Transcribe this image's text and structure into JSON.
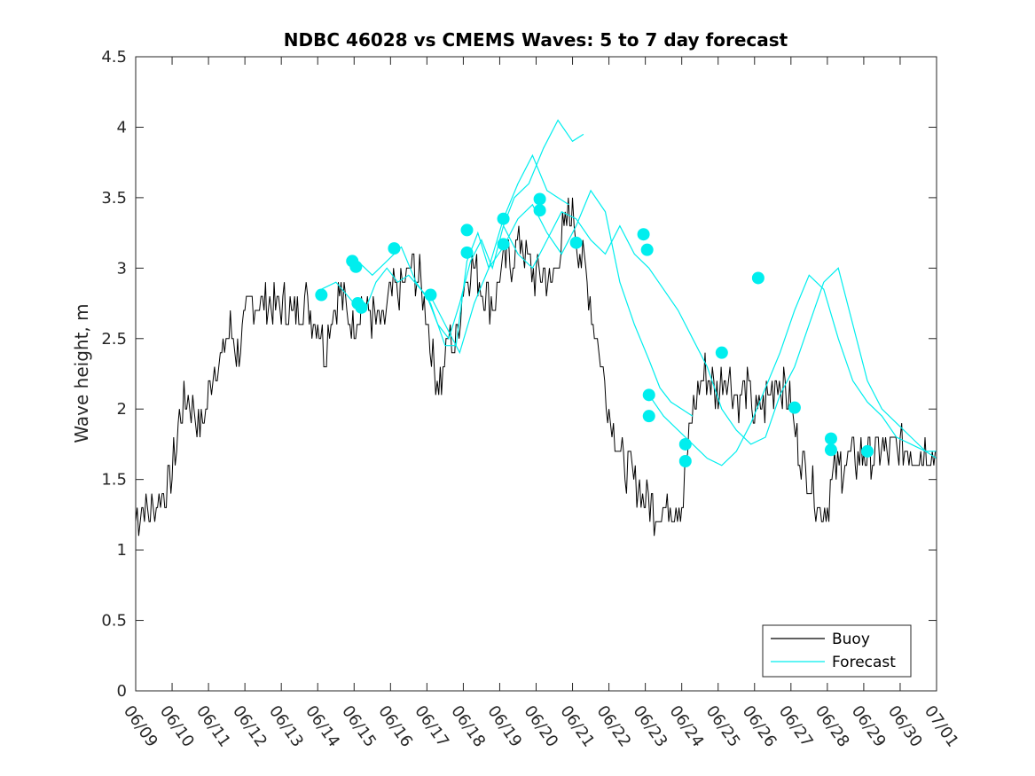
{
  "chart_data": {
    "type": "line",
    "title": "NDBC 46028 vs CMEMS Waves: 5 to 7 day forecast",
    "xlabel": "",
    "ylabel": "Wave height, m",
    "xlim": [
      "06/09",
      "07/01"
    ],
    "ylim": [
      0,
      4.5
    ],
    "x_ticks": [
      "06/09",
      "06/10",
      "06/11",
      "06/12",
      "06/13",
      "06/14",
      "06/15",
      "06/16",
      "06/17",
      "06/18",
      "06/19",
      "06/20",
      "06/21",
      "06/22",
      "06/23",
      "06/24",
      "06/25",
      "06/26",
      "06/27",
      "06/28",
      "06/29",
      "06/30",
      "07/01"
    ],
    "y_ticks": [
      0,
      0.5,
      1,
      1.5,
      2,
      2.5,
      3,
      3.5,
      4,
      4.5
    ],
    "y_tick_labels": [
      "0",
      "0.5",
      "1",
      "1.5",
      "2",
      "2.5",
      "3",
      "3.5",
      "4",
      "4.5"
    ],
    "grid": false,
    "legend_position": "bottom-right",
    "series": [
      {
        "name": "Buoy",
        "color": "#000000",
        "x_unit": "days since 06/09",
        "x": [
          0,
          0.2,
          0.4,
          0.6,
          0.8,
          1,
          1.2,
          1.4,
          1.6,
          1.8,
          2,
          2.2,
          2.4,
          2.6,
          2.8,
          3,
          3.2,
          3.4,
          3.6,
          3.8,
          4,
          4.2,
          4.4,
          4.6,
          4.8,
          5,
          5.2,
          5.4,
          5.6,
          5.8,
          6,
          6.2,
          6.4,
          6.6,
          6.8,
          7,
          7.2,
          7.4,
          7.6,
          7.8,
          8,
          8.2,
          8.4,
          8.6,
          8.8,
          9,
          9.2,
          9.4,
          9.6,
          9.8,
          10,
          10.2,
          10.4,
          10.6,
          10.8,
          11,
          11.2,
          11.4,
          11.6,
          11.8,
          12,
          12.2,
          12.4,
          12.6,
          12.8,
          13,
          13.2,
          13.4,
          13.6,
          13.8,
          14,
          14.2,
          14.4,
          14.6,
          14.8,
          15,
          15.2,
          15.4,
          15.6,
          15.8,
          16,
          16.2,
          16.4,
          16.6,
          16.8,
          17,
          17.2,
          17.4,
          17.6,
          17.8,
          18,
          18.2,
          18.4,
          18.6,
          18.8,
          19,
          19.2,
          19.4,
          19.6,
          19.8,
          20,
          20.2,
          20.4,
          20.6,
          20.8,
          21,
          21.2,
          21.4,
          21.6,
          21.8,
          22
        ],
        "values": [
          1.25,
          1.3,
          1.25,
          1.35,
          1.4,
          1.55,
          1.9,
          2.1,
          2.0,
          1.85,
          2.1,
          2.35,
          2.4,
          2.6,
          2.4,
          2.6,
          2.8,
          2.75,
          2.8,
          2.7,
          2.75,
          2.7,
          2.65,
          2.8,
          2.7,
          2.6,
          2.4,
          2.7,
          2.85,
          2.7,
          2.6,
          2.75,
          2.7,
          2.6,
          2.6,
          2.8,
          2.85,
          2.9,
          3.0,
          2.9,
          2.65,
          2.3,
          2.2,
          2.5,
          2.45,
          2.9,
          3.0,
          2.95,
          2.8,
          2.75,
          2.95,
          3.05,
          3.1,
          3.2,
          3.05,
          2.9,
          2.95,
          2.85,
          3.1,
          3.3,
          3.4,
          3.1,
          2.9,
          2.6,
          2.3,
          2.0,
          1.8,
          1.6,
          1.55,
          1.45,
          1.35,
          1.3,
          1.3,
          1.3,
          1.35,
          1.3,
          1.8,
          2.1,
          2.25,
          2.2,
          2.1,
          2.3,
          2.15,
          2.05,
          2.2,
          1.95,
          2.0,
          2.1,
          2.2,
          2.15,
          2.05,
          1.7,
          1.6,
          1.45,
          1.3,
          1.35,
          1.55,
          1.6,
          1.65,
          1.65,
          1.7,
          1.65,
          1.7,
          1.7,
          1.7,
          1.7,
          1.7,
          1.7,
          1.7,
          1.7,
          1.7
        ]
      },
      {
        "name": "Forecast",
        "color": "#00eeee",
        "segments": [
          {
            "x": [
              5.1,
              5.5,
              6,
              6.3,
              6.6,
              6.9,
              7.2,
              7.5,
              8,
              8.3,
              8.6,
              8.9,
              9.2,
              9.5,
              9.8,
              10.1,
              10.4,
              10.8,
              11.2,
              11.6,
              12,
              12.3
            ],
            "values": [
              2.85,
              2.9,
              2.75,
              2.7,
              2.9,
              3.0,
              2.9,
              2.95,
              2.8,
              2.6,
              2.5,
              2.75,
              3.05,
              3.2,
              3.0,
              3.3,
              3.5,
              3.6,
              3.85,
              4.05,
              3.9,
              3.95
            ]
          },
          {
            "x": [
              6.1,
              6.5,
              6.9,
              7.3,
              7.7,
              8.1,
              8.5,
              8.8,
              9.1,
              9.4,
              9.7,
              10.1,
              10.5,
              10.9,
              11.3,
              11.6,
              11.9
            ],
            "values": [
              3.05,
              2.95,
              3.05,
              3.15,
              2.9,
              2.75,
              2.45,
              2.45,
              3.05,
              3.25,
              3.0,
              3.35,
              3.6,
              3.8,
              3.55,
              3.5,
              3.45
            ]
          },
          {
            "x": [
              8.1,
              8.5,
              8.9,
              9.3,
              9.7,
              10.1,
              10.5,
              10.9,
              11.3,
              11.7,
              12.1,
              12.5,
              12.9,
              13.3,
              13.7,
              14.1,
              14.4,
              14.7,
              15.0,
              15.3
            ],
            "values": [
              2.8,
              2.6,
              2.4,
              2.75,
              3.0,
              3.15,
              3.35,
              3.45,
              3.25,
              3.1,
              3.3,
              3.55,
              3.4,
              2.9,
              2.6,
              2.35,
              2.15,
              2.05,
              2.0,
              1.95
            ]
          },
          {
            "x": [
              10.1,
              10.5,
              10.9,
              11.3,
              11.7,
              12.1,
              12.5,
              12.9,
              13.3,
              13.7,
              14.1,
              14.5,
              14.9,
              15.3,
              15.7,
              16.1,
              16.5,
              16.9,
              17.3,
              17.7,
              18.1,
              18.5,
              18.9,
              19.3,
              19.7,
              20.1,
              20.5,
              20.9,
              21.3,
              21.7,
              22
            ],
            "values": [
              3.3,
              3.1,
              3.0,
              3.2,
              3.4,
              3.35,
              3.2,
              3.1,
              3.3,
              3.1,
              3.0,
              2.85,
              2.7,
              2.5,
              2.3,
              2.0,
              1.85,
              1.75,
              1.8,
              2.1,
              2.3,
              2.6,
              2.9,
              3.0,
              2.6,
              2.2,
              2.0,
              1.9,
              1.8,
              1.7,
              1.7
            ]
          },
          {
            "x": [
              14.1,
              14.5,
              14.9,
              15.3,
              15.7,
              16.1,
              16.5,
              16.9,
              17.3,
              17.7,
              18.1,
              18.5,
              18.9,
              19.3,
              19.7,
              20.1,
              20.5,
              20.9,
              21.3,
              21.7,
              22
            ],
            "values": [
              2.1,
              1.95,
              1.85,
              1.75,
              1.65,
              1.6,
              1.7,
              1.9,
              2.15,
              2.4,
              2.7,
              2.95,
              2.85,
              2.5,
              2.2,
              2.05,
              1.95,
              1.8,
              1.75,
              1.7,
              1.65
            ]
          }
        ],
        "markers": {
          "x": [
            5.1,
            6.1,
            6.2,
            7.1,
            8.1,
            9.1,
            9.1,
            10.1,
            10.1,
            11.1,
            11.1,
            12.1,
            14.1,
            14.1,
            15.1,
            15.1,
            16.1,
            17.1,
            18.1,
            19.1,
            19.1,
            20.1,
            5.95,
            6.05,
            13.95,
            14.05
          ],
          "values": [
            2.81,
            2.75,
            2.72,
            3.14,
            2.81,
            3.27,
            3.11,
            3.35,
            3.17,
            3.49,
            3.41,
            3.18,
            2.1,
            1.95,
            1.75,
            1.63,
            2.4,
            2.93,
            2.01,
            1.79,
            1.71,
            1.7,
            3.05,
            3.01,
            3.24,
            3.13
          ]
        }
      }
    ]
  }
}
